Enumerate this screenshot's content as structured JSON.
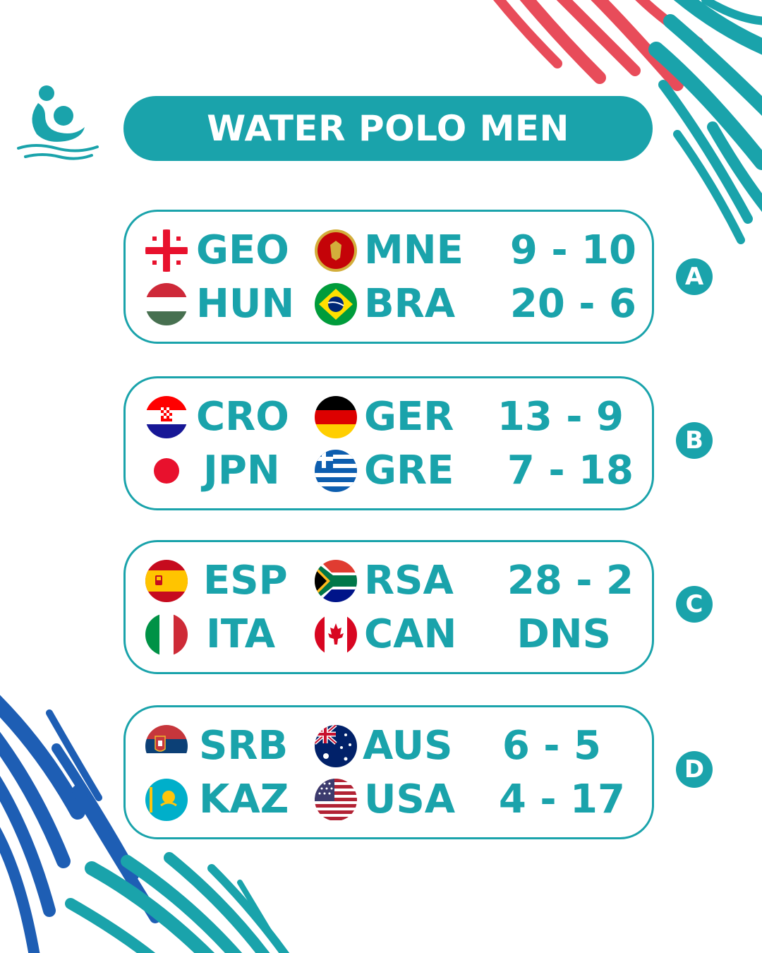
{
  "title": "WATER POLO MEN",
  "colors": {
    "accent": "#1aa3ab",
    "blue": "#1e5eb4",
    "red": "#e84c5a"
  },
  "logo_icon": "water-polo-player-icon",
  "groups": [
    {
      "id": "A",
      "matches": [
        {
          "home": "GEO",
          "home_flag": "georgia-flag-icon",
          "away": "MNE",
          "away_flag": "montenegro-flag-icon",
          "score": "9 - 10"
        },
        {
          "home": "HUN",
          "home_flag": "hungary-flag-icon",
          "away": "BRA",
          "away_flag": "brazil-flag-icon",
          "score": "20 - 6"
        }
      ]
    },
    {
      "id": "B",
      "matches": [
        {
          "home": "CRO",
          "home_flag": "croatia-flag-icon",
          "away": "GER",
          "away_flag": "germany-flag-icon",
          "score": "13 - 9"
        },
        {
          "home": "JPN",
          "home_flag": "japan-flag-icon",
          "away": "GRE",
          "away_flag": "greece-flag-icon",
          "score": "7 - 18"
        }
      ]
    },
    {
      "id": "C",
      "matches": [
        {
          "home": "ESP",
          "home_flag": "spain-flag-icon",
          "away": "RSA",
          "away_flag": "south-africa-flag-icon",
          "score": "28 - 2"
        },
        {
          "home": "ITA",
          "home_flag": "italy-flag-icon",
          "away": "CAN",
          "away_flag": "canada-flag-icon",
          "score": "DNS"
        }
      ]
    },
    {
      "id": "D",
      "matches": [
        {
          "home": "SRB",
          "home_flag": "serbia-flag-icon",
          "away": "AUS",
          "away_flag": "australia-flag-icon",
          "score": "6 - 5"
        },
        {
          "home": "KAZ",
          "home_flag": "kazakhstan-flag-icon",
          "away": "USA",
          "away_flag": "usa-flag-icon",
          "score": "4 - 17"
        }
      ]
    }
  ]
}
